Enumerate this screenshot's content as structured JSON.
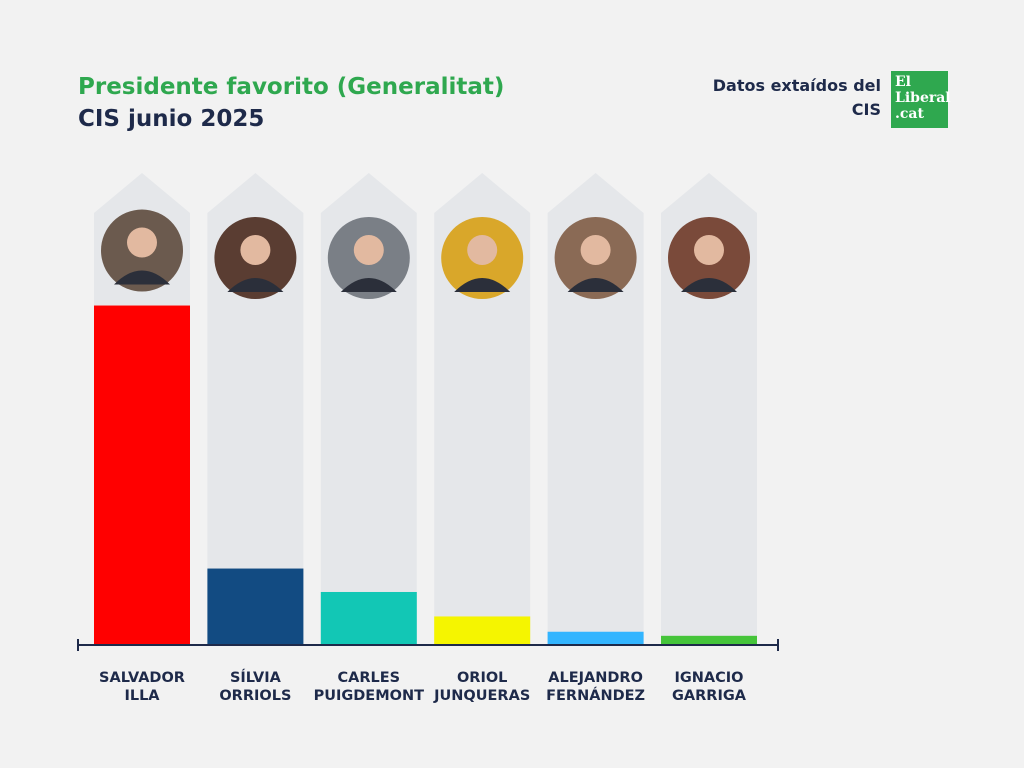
{
  "header": {
    "title": "Presidente favorito (Generalitat)",
    "subtitle": "CIS junio 2025",
    "source": "Datos extaídos del CIS",
    "logo_line1": "El",
    "logo_line2": "Liberal",
    "logo_line3": ".cat"
  },
  "colors": {
    "background": "#f2f2f2",
    "track": "#e5e7ea",
    "title_green": "#2fa84f",
    "text_navy": "#1e2a4a"
  },
  "chart_data": {
    "type": "bar",
    "categories": [
      "SALVADOR ILLA",
      "SÍLVIA ORRIOLS",
      "CARLES PUIGDEMONT",
      "ORIOL JUNQUERAS",
      "ALEJANDRO FERNÁNDEZ",
      "IGNACIO GARRIGA"
    ],
    "label_lines": [
      [
        "SALVADOR",
        "ILLA"
      ],
      [
        "SÍLVIA",
        "ORRIOLS"
      ],
      [
        "CARLES",
        "PUIGDEMONT"
      ],
      [
        "ORIOL",
        "JUNQUERAS"
      ],
      [
        "ALEJANDRO",
        "FERNÁNDEZ"
      ],
      [
        "IGNACIO",
        "GARRIGA"
      ]
    ],
    "values": [
      33.3,
      7.5,
      5.2,
      2.8,
      1.3,
      0.9
    ],
    "ylim": [
      0,
      46.3
    ],
    "bar_colors": [
      "#ff0000",
      "#124b82",
      "#12c7b5",
      "#f5f500",
      "#33b5ff",
      "#45c43a"
    ],
    "avatar_colors": [
      "#6b5a4e",
      "#5a3d32",
      "#7a7f86",
      "#d9a72a",
      "#8a6a55",
      "#7a4a3a"
    ],
    "legend": "none",
    "grid": false
  }
}
